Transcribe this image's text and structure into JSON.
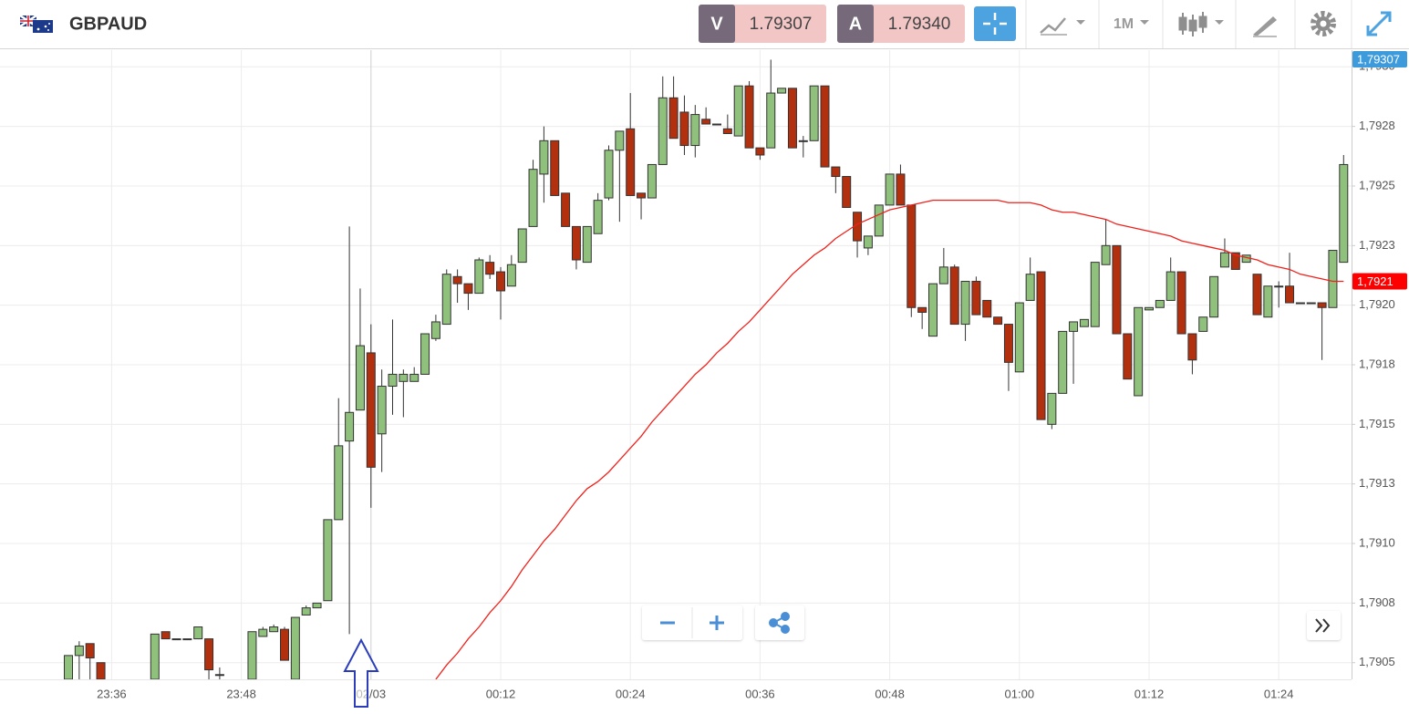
{
  "header": {
    "symbol": "GBPAUD",
    "bid_label": "V",
    "bid": "1.79307",
    "ask_label": "A",
    "ask": "1.79340",
    "timeframe": "1M"
  },
  "chart_data": {
    "type": "candlestick",
    "categories": [
      null,
      null,
      null,
      null,
      "23:36",
      null,
      null,
      null,
      null,
      null,
      null,
      null,
      null,
      null,
      null,
      null,
      "23:48",
      null,
      null,
      null,
      null,
      null,
      null,
      null,
      null,
      null,
      null,
      null,
      "02/03",
      null,
      null,
      null,
      null,
      null,
      null,
      null,
      null,
      null,
      null,
      null,
      "00:12",
      null,
      null,
      null,
      null,
      null,
      null,
      null,
      null,
      null,
      null,
      null,
      "00:24",
      null,
      null,
      null,
      null,
      null,
      null,
      null,
      null,
      null,
      null,
      null,
      "00:36",
      null,
      null,
      null,
      null,
      null,
      null,
      null,
      null,
      null,
      null,
      null,
      "00:48",
      null,
      null,
      null,
      null,
      null,
      null,
      null,
      null,
      null,
      null,
      null,
      "01:00",
      null,
      null,
      null,
      null,
      null,
      null,
      null,
      null,
      null,
      null,
      null,
      "01:12",
      null,
      null,
      null,
      null,
      null,
      null,
      null,
      null,
      null,
      null,
      null,
      "01:24",
      null,
      null,
      null,
      null,
      null,
      null
    ],
    "open": [
      1.79043,
      1.79053,
      1.79058,
      1.7905,
      null,
      null,
      null,
      null,
      1.79043,
      1.79063,
      1.7906,
      1.7906,
      1.7906,
      1.7906,
      1.79045,
      null,
      null,
      1.79043,
      1.79061,
      1.79063,
      1.79064,
      1.79043,
      1.7907,
      1.79073,
      1.79076,
      1.7911,
      1.79143,
      1.79156,
      1.7918,
      1.79146,
      1.79166,
      1.79168,
      1.79168,
      1.79171,
      1.79186,
      1.79192,
      1.79212,
      1.79209,
      1.79205,
      1.79218,
      1.79214,
      1.79208,
      1.79218,
      1.79233,
      1.79255,
      1.79269,
      1.79247,
      1.79233,
      1.79218,
      1.7923,
      1.79245,
      1.79265,
      1.79274,
      1.79247,
      1.79245,
      1.79259,
      1.79287,
      1.79281,
      1.79267,
      1.79278,
      1.79276,
      1.79274,
      1.79271,
      1.79292,
      1.79266,
      1.79266,
      1.79289,
      1.79291,
      1.79269,
      1.79269,
      1.79292,
      1.79258,
      1.79254,
      1.79239,
      1.79224,
      1.79229,
      1.79242,
      1.79255,
      1.79242,
      1.79199,
      1.79187,
      1.79209,
      1.79216,
      1.79192,
      1.7921,
      1.79202,
      1.79195,
      1.79192,
      1.79172,
      1.79202,
      1.79214,
      1.7915,
      1.79163,
      1.79189,
      1.79191,
      1.79191,
      1.79217,
      1.79225,
      1.79188,
      1.79162,
      1.79198,
      1.79199,
      1.79202,
      1.79214,
      1.79188,
      1.79189,
      1.79195,
      1.79216,
      1.79222,
      1.79218,
      1.79213,
      1.79195,
      1.79208,
      1.79208,
      1.79201,
      1.79201,
      1.79201,
      1.79199,
      1.79218
    ],
    "high": [
      1.79053,
      1.79059,
      1.79058,
      1.7905,
      null,
      null,
      null,
      null,
      1.79062,
      1.79063,
      1.7906,
      1.7906,
      1.79065,
      1.7906,
      1.79048,
      null,
      null,
      1.79063,
      1.79065,
      1.79066,
      1.79065,
      1.79069,
      1.79074,
      1.79075,
      1.7911,
      1.79161,
      1.79233,
      1.79207,
      1.79192,
      1.79173,
      1.79194,
      1.79173,
      1.79174,
      1.79188,
      1.79196,
      1.79215,
      1.79215,
      1.79209,
      1.7922,
      1.79221,
      1.79216,
      1.79221,
      1.79232,
      1.79261,
      1.79275,
      1.79269,
      1.79247,
      1.79233,
      1.79233,
      1.79247,
      1.79267,
      1.79273,
      1.79289,
      1.79247,
      1.79259,
      1.79296,
      1.79296,
      1.79288,
      1.79284,
      1.79283,
      1.79276,
      1.7928,
      1.79292,
      1.79294,
      1.79266,
      1.79303,
      1.79291,
      1.79291,
      1.79271,
      1.79292,
      1.79292,
      1.79258,
      1.79254,
      1.79239,
      1.79229,
      1.79242,
      1.79255,
      1.79259,
      1.79242,
      1.79199,
      1.79209,
      1.79224,
      1.79217,
      1.7921,
      1.79212,
      1.79202,
      1.79195,
      1.79192,
      1.79201,
      1.7922,
      1.79214,
      1.79163,
      1.79189,
      1.79193,
      1.79194,
      1.79218,
      1.79236,
      1.79225,
      1.79188,
      1.79199,
      1.79199,
      1.79202,
      1.7922,
      1.79214,
      1.79188,
      1.79195,
      1.79212,
      1.79228,
      1.79222,
      1.79221,
      1.79213,
      1.79208,
      1.7921,
      1.79222,
      1.79201,
      1.79201,
      1.79201,
      1.79223,
      1.79263
    ],
    "low": [
      1.79043,
      1.79043,
      1.79043,
      1.79043,
      null,
      null,
      null,
      null,
      1.79043,
      1.7906,
      1.7906,
      1.7906,
      1.7906,
      1.79043,
      1.79043,
      null,
      null,
      1.79043,
      1.79061,
      1.79063,
      1.79051,
      1.79043,
      1.7907,
      1.79073,
      1.79076,
      1.7911,
      1.79062,
      1.79156,
      1.79115,
      1.7913,
      1.79154,
      1.79153,
      1.79168,
      1.79171,
      1.79185,
      1.79192,
      1.79201,
      1.79198,
      1.79205,
      1.79211,
      1.79194,
      1.79208,
      1.79218,
      1.79233,
      1.79243,
      1.79246,
      1.79233,
      1.79215,
      1.79218,
      1.7923,
      1.79244,
      1.79235,
      1.79246,
      1.79236,
      1.79245,
      1.79259,
      1.7927,
      1.79263,
      1.79262,
      1.79276,
      1.79276,
      1.79272,
      1.79271,
      1.79266,
      1.79261,
      1.79266,
      1.79289,
      1.79266,
      1.79262,
      1.79269,
      1.79258,
      1.79247,
      1.79241,
      1.7922,
      1.79221,
      1.79229,
      1.79242,
      1.79242,
      1.79195,
      1.7919,
      1.79187,
      1.79209,
      1.79192,
      1.79185,
      1.79196,
      1.79195,
      1.79192,
      1.79164,
      1.79172,
      1.79202,
      1.79152,
      1.79148,
      1.79163,
      1.79167,
      1.79191,
      1.79191,
      1.79217,
      1.79188,
      1.79169,
      1.79162,
      1.79198,
      1.79199,
      1.79202,
      1.79188,
      1.79171,
      1.79189,
      1.79195,
      1.79216,
      1.79215,
      1.79218,
      1.79196,
      1.79195,
      1.79199,
      1.79201,
      1.79201,
      1.79201,
      1.79177,
      1.79199,
      1.79218
    ],
    "close": [
      1.79053,
      1.79057,
      1.79052,
      1.79043,
      null,
      null,
      null,
      null,
      1.79062,
      1.7906,
      1.7906,
      1.7906,
      1.79065,
      1.79047,
      1.79045,
      null,
      null,
      1.79063,
      1.79064,
      1.79065,
      1.79051,
      1.79069,
      1.79073,
      1.79075,
      1.7911,
      1.79141,
      1.79155,
      1.79183,
      1.79132,
      1.79166,
      1.79171,
      1.79171,
      1.79171,
      1.79188,
      1.79193,
      1.79213,
      1.79209,
      1.79205,
      1.79219,
      1.79213,
      1.79206,
      1.79217,
      1.79232,
      1.79257,
      1.79269,
      1.79246,
      1.79233,
      1.79219,
      1.79233,
      1.79244,
      1.79265,
      1.79273,
      1.79246,
      1.79245,
      1.79259,
      1.79287,
      1.7927,
      1.79267,
      1.7928,
      1.79276,
      1.79276,
      1.79272,
      1.79292,
      1.79266,
      1.79263,
      1.79289,
      1.79291,
      1.79266,
      1.79269,
      1.79292,
      1.79258,
      1.79254,
      1.79241,
      1.79227,
      1.79229,
      1.79242,
      1.79255,
      1.79242,
      1.79199,
      1.79197,
      1.79209,
      1.79216,
      1.79192,
      1.7921,
      1.79196,
      1.79195,
      1.79192,
      1.79176,
      1.79201,
      1.79213,
      1.79152,
      1.79163,
      1.79189,
      1.79193,
      1.79194,
      1.79218,
      1.79225,
      1.79188,
      1.79169,
      1.79199,
      1.79199,
      1.79202,
      1.79214,
      1.79188,
      1.79177,
      1.79195,
      1.79212,
      1.79222,
      1.79215,
      1.79221,
      1.79196,
      1.79208,
      1.79208,
      1.79201,
      1.79201,
      1.79201,
      1.79199,
      1.79223,
      1.79259
    ],
    "up_color": "#8fc07c",
    "down_color": "#b3300f",
    "series": [
      {
        "type": "line",
        "color": "#f0211b",
        "values": [
          null,
          null,
          null,
          null,
          null,
          null,
          null,
          null,
          null,
          null,
          null,
          null,
          null,
          null,
          null,
          null,
          null,
          null,
          null,
          null,
          null,
          null,
          null,
          null,
          null,
          null,
          null,
          null,
          null,
          null,
          null,
          null,
          null,
          null,
          1.79043,
          1.79049,
          1.79054,
          1.7906,
          1.79065,
          1.79071,
          1.79076,
          1.79082,
          1.79089,
          1.79095,
          1.79101,
          1.79106,
          1.79112,
          1.79118,
          1.79123,
          1.79126,
          1.7913,
          1.79135,
          1.7914,
          1.79145,
          1.79151,
          1.79156,
          1.79161,
          1.79166,
          1.79171,
          1.79175,
          1.7918,
          1.79184,
          1.79189,
          1.79193,
          1.79198,
          1.79203,
          1.79208,
          1.79213,
          1.79217,
          1.79221,
          1.79224,
          1.79228,
          1.79231,
          1.79234,
          1.79236,
          1.79238,
          1.7924,
          1.79241,
          1.79242,
          1.79243,
          1.79244,
          1.79244,
          1.79244,
          1.79244,
          1.79244,
          1.79244,
          1.79244,
          1.79243,
          1.79243,
          1.79243,
          1.79242,
          1.7924,
          1.79239,
          1.79239,
          1.79238,
          1.79237,
          1.79236,
          1.79234,
          1.79233,
          1.79232,
          1.79231,
          1.7923,
          1.79229,
          1.79227,
          1.79226,
          1.79225,
          1.79224,
          1.79223,
          1.79221,
          1.7922,
          1.79219,
          1.79217,
          1.79216,
          1.79215,
          1.79213,
          1.79212,
          1.79211,
          1.7921,
          1.7921
        ]
      }
    ],
    "ylim": [
      1.79043,
      1.79307
    ],
    "yticks": [
      {
        "value": 1.7905,
        "label": "1,7905"
      },
      {
        "value": 1.79075,
        "label": "1,7908"
      },
      {
        "value": 1.791,
        "label": "1,7910"
      },
      {
        "value": 1.79125,
        "label": "1,7913"
      },
      {
        "value": 1.7915,
        "label": "1,7915"
      },
      {
        "value": 1.79175,
        "label": "1,7918"
      },
      {
        "value": 1.792,
        "label": "1,7920"
      },
      {
        "value": 1.79225,
        "label": "1,7923"
      },
      {
        "value": 1.7925,
        "label": "1,7925"
      },
      {
        "value": 1.79275,
        "label": "1,7928"
      },
      {
        "value": 1.793,
        "label": "1,7930"
      }
    ],
    "grid": true,
    "price_tags": [
      {
        "value": 1.79307,
        "label": "1,79307",
        "color": "#3d9bdc"
      },
      {
        "value": 1.7921,
        "label": "1,7921",
        "color": "#ff0000"
      }
    ]
  }
}
